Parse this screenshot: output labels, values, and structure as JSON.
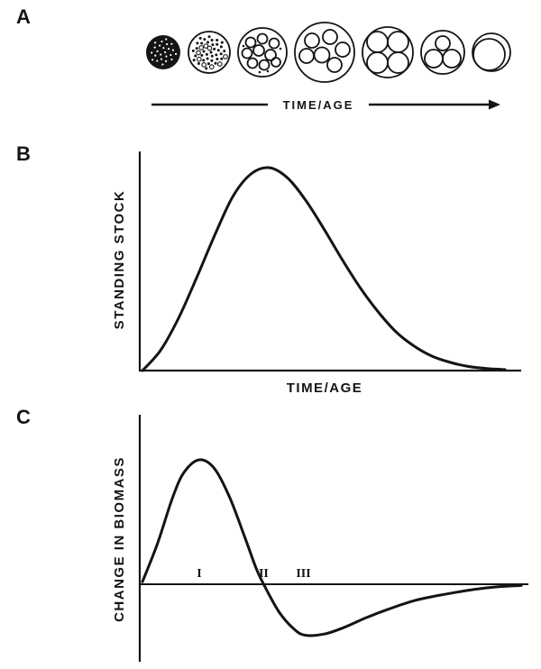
{
  "figure": {
    "panels": {
      "a": {
        "label": "A",
        "arrow_label": "TIME/AGE"
      },
      "b": {
        "label": "B"
      },
      "c": {
        "label": "C"
      }
    }
  },
  "panel_a": {
    "description_depicted": "stand development: many small individuals to few large individuals over time",
    "stages": [
      {
        "stage": 1,
        "r": 19,
        "pattern": "solid-speckled",
        "speckle_count": 24
      },
      {
        "stage": 2,
        "r": 23,
        "pattern": "speckle-dots",
        "dot_count": 44
      },
      {
        "stage": 3,
        "r": 27,
        "pattern": "inner-circles",
        "circles": [
          [
            -13,
            -11,
            5.5
          ],
          [
            0,
            -15,
            5.5
          ],
          [
            13,
            -10,
            5.5
          ],
          [
            -17,
            1,
            5.5
          ],
          [
            -4,
            -2,
            6
          ],
          [
            9,
            3,
            6
          ],
          [
            -11,
            12,
            5.5
          ],
          [
            2,
            14,
            5.5
          ],
          [
            15,
            11,
            5
          ]
        ],
        "specks": [
          [
            20,
            -4
          ],
          [
            -21,
            -7
          ],
          [
            6,
            21
          ],
          [
            -3,
            22
          ]
        ]
      },
      {
        "stage": 4,
        "r": 33,
        "pattern": "inner-circles",
        "circles": [
          [
            -14,
            -13,
            8
          ],
          [
            6,
            -17,
            8
          ],
          [
            20,
            -3,
            8
          ],
          [
            -20,
            4,
            8
          ],
          [
            -3,
            3,
            8.5
          ],
          [
            11,
            14,
            8
          ]
        ]
      },
      {
        "stage": 5,
        "r": 28,
        "pattern": "inner-circles",
        "circles": [
          [
            -11.5,
            -11.5,
            11.5
          ],
          [
            11.5,
            -11.5,
            11.5
          ],
          [
            -11.5,
            11.5,
            11.5
          ],
          [
            11.5,
            11.5,
            11.5
          ]
        ]
      },
      {
        "stage": 6,
        "r": 24,
        "pattern": "inner-circles",
        "circles": [
          [
            -10,
            7,
            10
          ],
          [
            10,
            7,
            10
          ],
          [
            0,
            -10,
            8
          ]
        ]
      },
      {
        "stage": 7,
        "r": 21,
        "pattern": "inner-circles",
        "circles": [
          [
            -2.5,
            2.5,
            17.5
          ]
        ]
      }
    ]
  },
  "chart_data": [
    {
      "panel": "B",
      "type": "line",
      "title": "",
      "xlabel": "TIME/AGE",
      "ylabel": "STANDING STOCK",
      "xlim": [
        0,
        10
      ],
      "ylim": [
        0,
        1
      ],
      "grid": false,
      "ticks": "none",
      "x": [
        0,
        0.5,
        1,
        1.5,
        2,
        2.5,
        3,
        3.5,
        4,
        4.5,
        5,
        5.5,
        6,
        6.5,
        7,
        7.5,
        8,
        8.5,
        9,
        9.5,
        10
      ],
      "y": [
        0,
        0.1,
        0.26,
        0.46,
        0.67,
        0.86,
        0.97,
        1.0,
        0.95,
        0.84,
        0.7,
        0.55,
        0.41,
        0.29,
        0.19,
        0.12,
        0.07,
        0.04,
        0.02,
        0.01,
        0.005
      ]
    },
    {
      "panel": "C",
      "type": "line",
      "title": "",
      "xlabel": "",
      "ylabel": "CHANGE IN BIOMASS",
      "xlim": [
        0,
        10
      ],
      "ylim": [
        -0.5,
        1.05
      ],
      "grid": false,
      "ticks": "none",
      "zero_line": true,
      "x": [
        0,
        0.4,
        0.8,
        1.1,
        1.5,
        1.9,
        2.3,
        2.7,
        3.0,
        3.2,
        3.6,
        4.0,
        4.3,
        4.8,
        5.3,
        5.9,
        6.5,
        7.2,
        8.0,
        8.8,
        9.4,
        10
      ],
      "y": [
        0.02,
        0.33,
        0.7,
        0.9,
        1.0,
        0.93,
        0.7,
        0.38,
        0.13,
        0.0,
        -0.22,
        -0.36,
        -0.41,
        -0.4,
        -0.35,
        -0.27,
        -0.2,
        -0.13,
        -0.08,
        -0.04,
        -0.02,
        -0.01
      ],
      "annotations": [
        {
          "label": "I",
          "x": 1.5
        },
        {
          "label": "II",
          "x": 3.2
        },
        {
          "label": "III",
          "x": 4.25
        }
      ]
    }
  ]
}
